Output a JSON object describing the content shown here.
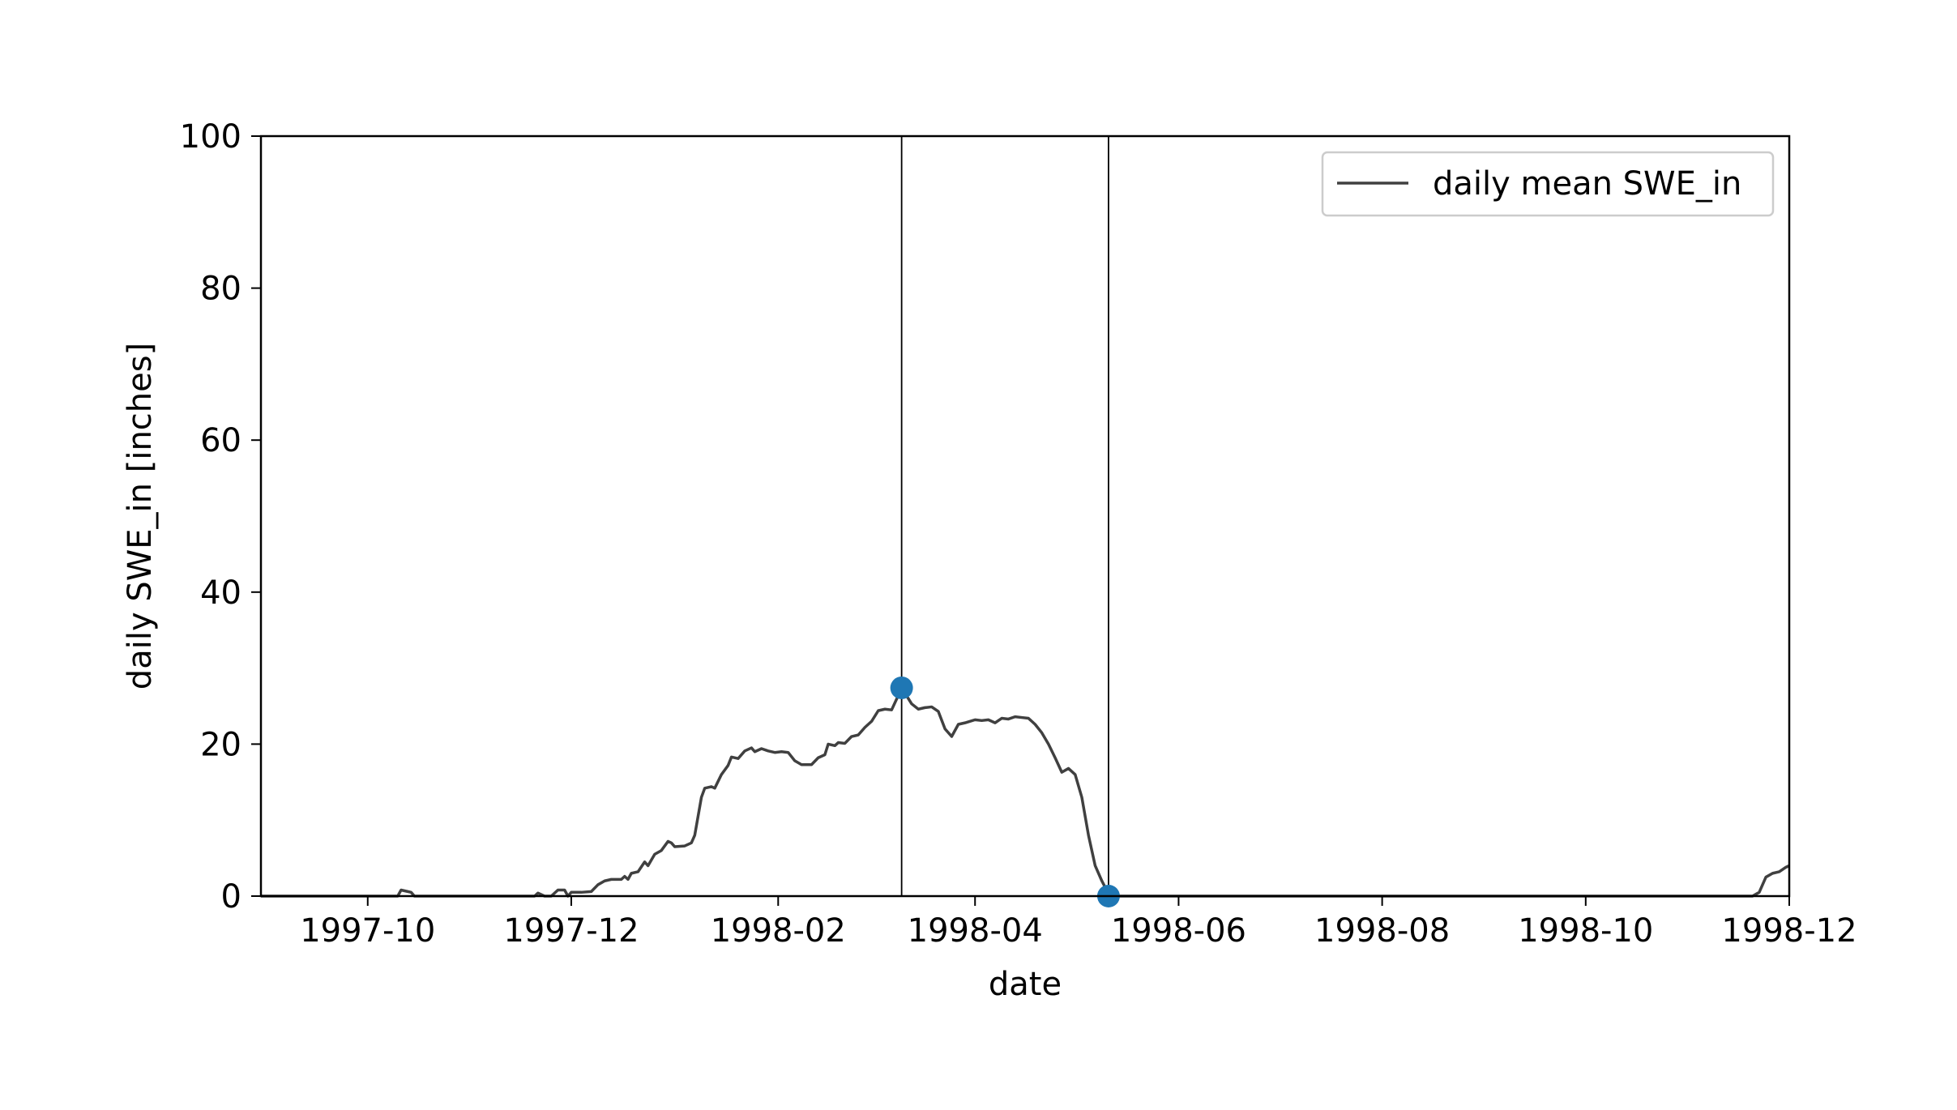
{
  "chart_data": {
    "type": "line",
    "title": "",
    "xlabel": "date",
    "ylabel": "daily SWE_in [inches]",
    "x_axis_type": "date",
    "xlim": [
      "1997-08-30",
      "1998-12-01"
    ],
    "ylim": [
      0,
      100
    ],
    "x_ticks": [
      "1997-10-01",
      "1997-12-01",
      "1998-02-01",
      "1998-04-01",
      "1998-06-01",
      "1998-08-01",
      "1998-10-01",
      "1998-12-01"
    ],
    "x_tick_labels": [
      "1997-10",
      "1997-12",
      "1998-02",
      "1998-04",
      "1998-06",
      "1998-08",
      "1998-10",
      "1998-12"
    ],
    "y_ticks": [
      0,
      20,
      40,
      60,
      80,
      100
    ],
    "y_tick_labels": [
      "0",
      "20",
      "40",
      "60",
      "80",
      "100"
    ],
    "grid": false,
    "legend_position": "top-right",
    "series": [
      {
        "name": "daily mean SWE_in",
        "color": "#404040",
        "points": [
          [
            "1997-08-30",
            0
          ],
          [
            "1997-10-10",
            0
          ],
          [
            "1997-10-11",
            0.8
          ],
          [
            "1997-10-13",
            0.6
          ],
          [
            "1997-10-14",
            0.5
          ],
          [
            "1997-10-15",
            0
          ],
          [
            "1997-11-20",
            0
          ],
          [
            "1997-11-21",
            0.4
          ],
          [
            "1997-11-23",
            0
          ],
          [
            "1997-11-25",
            0
          ],
          [
            "1997-11-27",
            0.8
          ],
          [
            "1997-11-29",
            0.8
          ],
          [
            "1997-11-30",
            0
          ],
          [
            "1997-12-01",
            0.5
          ],
          [
            "1997-12-04",
            0.5
          ],
          [
            "1997-12-07",
            0.6
          ],
          [
            "1997-12-09",
            1.5
          ],
          [
            "1997-12-11",
            2.0
          ],
          [
            "1997-12-13",
            2.2
          ],
          [
            "1997-12-16",
            2.2
          ],
          [
            "1997-12-17",
            2.6
          ],
          [
            "1997-12-18",
            2.2
          ],
          [
            "1997-12-19",
            3.0
          ],
          [
            "1997-12-21",
            3.2
          ],
          [
            "1997-12-23",
            4.5
          ],
          [
            "1997-12-24",
            4.0
          ],
          [
            "1997-12-26",
            5.5
          ],
          [
            "1997-12-28",
            6.0
          ],
          [
            "1997-12-30",
            7.2
          ],
          [
            "1997-12-31",
            7.0
          ],
          [
            "1998-01-01",
            6.5
          ],
          [
            "1998-01-04",
            6.6
          ],
          [
            "1998-01-06",
            7.0
          ],
          [
            "1998-01-07",
            8.0
          ],
          [
            "1998-01-09",
            13.0
          ],
          [
            "1998-01-10",
            14.2
          ],
          [
            "1998-01-12",
            14.4
          ],
          [
            "1998-01-13",
            14.2
          ],
          [
            "1998-01-15",
            16.0
          ],
          [
            "1998-01-17",
            17.2
          ],
          [
            "1998-01-18",
            18.3
          ],
          [
            "1998-01-20",
            18.1
          ],
          [
            "1998-01-22",
            19.1
          ],
          [
            "1998-01-24",
            19.5
          ],
          [
            "1998-01-25",
            19.0
          ],
          [
            "1998-01-27",
            19.4
          ],
          [
            "1998-01-29",
            19.1
          ],
          [
            "1998-01-31",
            18.9
          ],
          [
            "1998-02-02",
            19.0
          ],
          [
            "1998-02-04",
            18.9
          ],
          [
            "1998-02-06",
            17.8
          ],
          [
            "1998-02-08",
            17.3
          ],
          [
            "1998-02-11",
            17.3
          ],
          [
            "1998-02-13",
            18.2
          ],
          [
            "1998-02-15",
            18.6
          ],
          [
            "1998-02-16",
            20.0
          ],
          [
            "1998-02-18",
            19.8
          ],
          [
            "1998-02-19",
            20.2
          ],
          [
            "1998-02-21",
            20.1
          ],
          [
            "1998-02-23",
            21.0
          ],
          [
            "1998-02-25",
            21.2
          ],
          [
            "1998-02-27",
            22.2
          ],
          [
            "1998-03-01",
            23.0
          ],
          [
            "1998-03-03",
            24.4
          ],
          [
            "1998-03-05",
            24.6
          ],
          [
            "1998-03-07",
            24.5
          ],
          [
            "1998-03-09",
            26.4
          ],
          [
            "1998-03-10",
            27.0
          ],
          [
            "1998-03-11",
            26.7
          ],
          [
            "1998-03-13",
            25.3
          ],
          [
            "1998-03-15",
            24.6
          ],
          [
            "1998-03-17",
            24.8
          ],
          [
            "1998-03-19",
            24.9
          ],
          [
            "1998-03-21",
            24.3
          ],
          [
            "1998-03-23",
            22.0
          ],
          [
            "1998-03-25",
            21.0
          ],
          [
            "1998-03-27",
            22.6
          ],
          [
            "1998-03-29",
            22.8
          ],
          [
            "1998-04-01",
            23.2
          ],
          [
            "1998-04-03",
            23.1
          ],
          [
            "1998-04-05",
            23.2
          ],
          [
            "1998-04-07",
            22.8
          ],
          [
            "1998-04-09",
            23.4
          ],
          [
            "1998-04-11",
            23.3
          ],
          [
            "1998-04-13",
            23.6
          ],
          [
            "1998-04-15",
            23.5
          ],
          [
            "1998-04-17",
            23.4
          ],
          [
            "1998-04-19",
            22.6
          ],
          [
            "1998-04-21",
            21.5
          ],
          [
            "1998-04-23",
            20.0
          ],
          [
            "1998-04-25",
            18.2
          ],
          [
            "1998-04-27",
            16.3
          ],
          [
            "1998-04-29",
            16.8
          ],
          [
            "1998-05-01",
            16.0
          ],
          [
            "1998-05-03",
            13.0
          ],
          [
            "1998-05-05",
            8.0
          ],
          [
            "1998-05-07",
            4.0
          ],
          [
            "1998-05-09",
            2.0
          ],
          [
            "1998-05-11",
            0.3
          ],
          [
            "1998-05-12",
            0
          ],
          [
            "1998-11-20",
            0
          ],
          [
            "1998-11-22",
            0.5
          ],
          [
            "1998-11-24",
            2.5
          ],
          [
            "1998-11-26",
            3.0
          ],
          [
            "1998-11-28",
            3.2
          ],
          [
            "1998-11-30",
            3.8
          ],
          [
            "1998-12-01",
            4.0
          ]
        ]
      }
    ],
    "markers": [
      {
        "date": "1998-03-10",
        "value": 27.4,
        "color": "#1f77b4"
      },
      {
        "date": "1998-05-11",
        "value": 0,
        "color": "#1f77b4"
      }
    ],
    "vlines": [
      "1998-03-10",
      "1998-05-11"
    ]
  }
}
